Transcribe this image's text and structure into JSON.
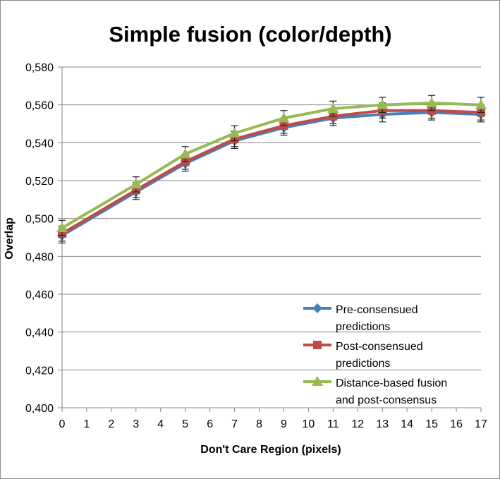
{
  "chart_data": {
    "type": "line",
    "title": "Simple fusion (color/depth)",
    "xlabel": "Don't Care Region (pixels)",
    "ylabel": "Overlap",
    "x_ticks": [
      "0",
      "1",
      "2",
      "3",
      "4",
      "5",
      "6",
      "7",
      "8",
      "9",
      "10",
      "11",
      "12",
      "13",
      "14",
      "15",
      "16",
      "17"
    ],
    "ylim": [
      0.4,
      0.58
    ],
    "y_ticks": [
      "0,400",
      "0,420",
      "0,440",
      "0,460",
      "0,480",
      "0,500",
      "0,520",
      "0,540",
      "0,560",
      "0,580"
    ],
    "y_tick_values": [
      0.4,
      0.42,
      0.44,
      0.46,
      0.48,
      0.5,
      0.52,
      0.54,
      0.56,
      0.58
    ],
    "x": [
      0,
      3,
      5,
      7,
      9,
      11,
      13,
      15,
      17
    ],
    "grid": "horizontal",
    "legend_position": "bottom-right",
    "error_bar": 0.004,
    "series": [
      {
        "name": "Pre-consensued predictions",
        "name_lines": [
          "Pre-consensued",
          "predictions"
        ],
        "marker": "diamond",
        "color": "#4a7ebb",
        "values": [
          0.491,
          0.514,
          0.529,
          0.541,
          0.548,
          0.553,
          0.555,
          0.556,
          0.555
        ]
      },
      {
        "name": "Post-consensued predictions",
        "name_lines": [
          "Post-consensued",
          "predictions"
        ],
        "marker": "square",
        "color": "#be4b48",
        "values": [
          0.492,
          0.515,
          0.53,
          0.542,
          0.549,
          0.554,
          0.557,
          0.557,
          0.556
        ]
      },
      {
        "name": "Distance-based fusion and post-consensus",
        "name_lines": [
          "Distance-based fusion",
          "and post-consensus"
        ],
        "marker": "triangle",
        "color": "#98b954",
        "values": [
          0.495,
          0.518,
          0.534,
          0.545,
          0.553,
          0.558,
          0.56,
          0.561,
          0.56
        ]
      }
    ]
  }
}
